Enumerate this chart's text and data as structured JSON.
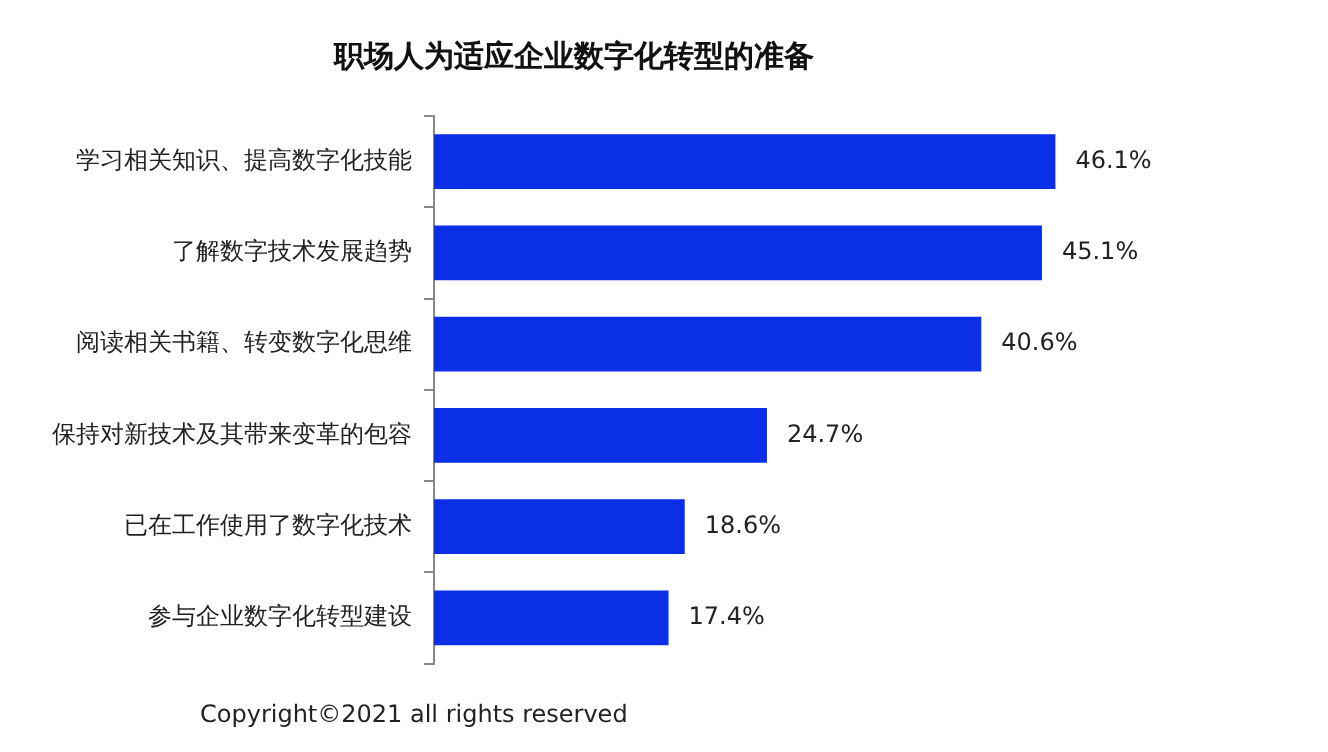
{
  "chart_data": {
    "type": "bar",
    "orientation": "horizontal",
    "title": "职场人为适应企业数字化转型的准备",
    "categories": [
      "学习相关知识、提高数字化技能",
      "了解数字技术发展趋势",
      "阅读相关书籍、转变数字化思维",
      "保持对新技术及其带来变革的包容",
      "已在工作使用了数字化技术",
      "参与企业数字化转型建设"
    ],
    "values": [
      46.1,
      45.1,
      40.6,
      24.7,
      18.6,
      17.4
    ],
    "value_labels": [
      "46.1%",
      "45.1%",
      "40.6%",
      "24.7%",
      "18.6%",
      "17.4%"
    ],
    "color": "#0a2fe6",
    "legend": false,
    "annotations": [
      "Copyright©2021 all rights reserved"
    ]
  }
}
